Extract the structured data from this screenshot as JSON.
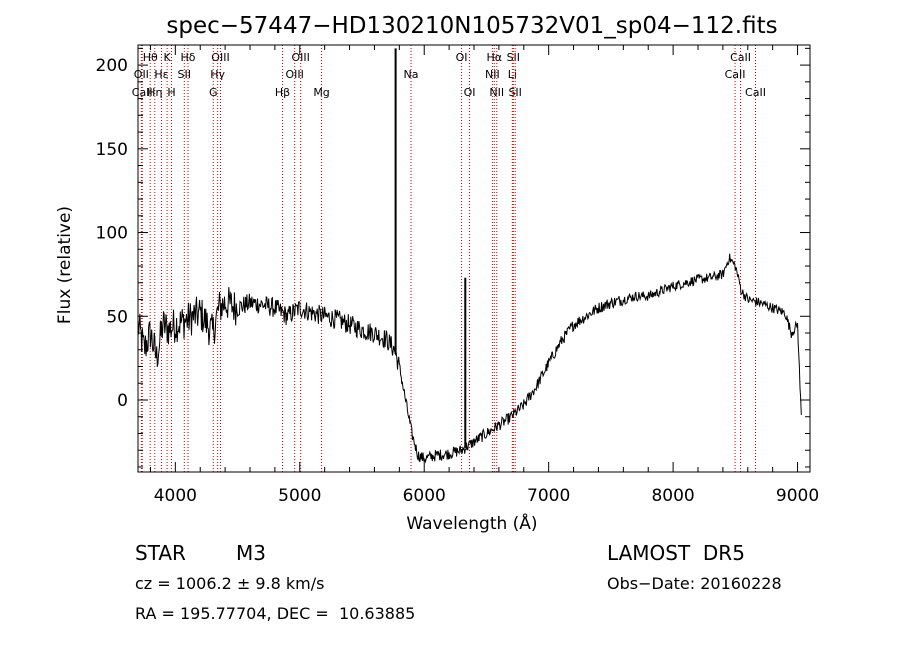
{
  "chart_data": {
    "type": "line",
    "title": "spec−57447−HD130210N105732V01_sp04−112.fits",
    "xlabel": "Wavelength (Å)",
    "ylabel": "Flux (relative)",
    "xlim": [
      3700,
      9100
    ],
    "ylim": [
      -43,
      212
    ],
    "x_ticks": [
      4000,
      5000,
      6000,
      7000,
      8000,
      9000
    ],
    "x_tick_labels": [
      "4000",
      "5000",
      "6000",
      "7000",
      "8000",
      "9000"
    ],
    "y_ticks": [
      0,
      50,
      100,
      150,
      200
    ],
    "y_tick_labels": [
      "0",
      "50",
      "100",
      "150",
      "200"
    ],
    "grid": false,
    "line_color": "#000000",
    "line_marker_color": "#cc0000",
    "spectrum_anchor_points": {
      "x": [
        3700,
        3750,
        3800,
        3850,
        3900,
        3950,
        4000,
        4100,
        4200,
        4300,
        4350,
        4400,
        4500,
        4600,
        4700,
        4800,
        4900,
        5000,
        5100,
        5200,
        5300,
        5400,
        5500,
        5600,
        5700,
        5760,
        5800,
        5850,
        5900,
        5950,
        6000,
        6100,
        6200,
        6300,
        6400,
        6500,
        6600,
        6700,
        6800,
        6900,
        7000,
        7100,
        7200,
        7300,
        7400,
        7500,
        7600,
        7700,
        7800,
        7900,
        8000,
        8100,
        8200,
        8300,
        8400,
        8450,
        8500,
        8550,
        8600,
        8700,
        8800,
        8900,
        8950,
        9000,
        9030
      ],
      "y": [
        45,
        30,
        40,
        25,
        45,
        42,
        45,
        48,
        52,
        40,
        55,
        58,
        55,
        58,
        57,
        55,
        50,
        55,
        52,
        50,
        48,
        45,
        42,
        40,
        36,
        30,
        20,
        0,
        -20,
        -33,
        -35,
        -33,
        -32,
        -30,
        -25,
        -20,
        -15,
        -10,
        -3,
        8,
        22,
        35,
        45,
        50,
        55,
        58,
        60,
        62,
        62,
        65,
        68,
        70,
        72,
        73,
        75,
        85,
        80,
        65,
        60,
        58,
        55,
        52,
        40,
        45,
        -10
      ]
    },
    "spikes": [
      {
        "x": 5770,
        "y": 210
      },
      {
        "x": 6330,
        "y": 73
      }
    ],
    "lines": [
      {
        "name": "Hθ",
        "x": 3798,
        "row": 0
      },
      {
        "name": "OII",
        "x": 3727,
        "row": 1
      },
      {
        "name": "CaII",
        "x": 3734,
        "row": 2
      },
      {
        "name": "K",
        "x": 3934,
        "row": 0
      },
      {
        "name": "Hε",
        "x": 3889,
        "row": 1
      },
      {
        "name": "Hη",
        "x": 3835,
        "row": 2
      },
      {
        "name": "Hδ",
        "x": 4102,
        "row": 0
      },
      {
        "name": "SII",
        "x": 4072,
        "row": 1
      },
      {
        "name": "H",
        "x": 3969,
        "row": 2
      },
      {
        "name": "OIII",
        "x": 4363,
        "row": 0
      },
      {
        "name": "Hγ",
        "x": 4340,
        "row": 1
      },
      {
        "name": "G",
        "x": 4305,
        "row": 2
      },
      {
        "name": "OIII",
        "x": 5007,
        "row": 0
      },
      {
        "name": "OIII",
        "x": 4959,
        "row": 1
      },
      {
        "name": "Hβ",
        "x": 4861,
        "row": 2
      },
      {
        "name": "Mg",
        "x": 5175,
        "row": 2
      },
      {
        "name": "Na",
        "x": 5894,
        "row": 1
      },
      {
        "name": "OI",
        "x": 6300,
        "row": 0
      },
      {
        "name": "OI",
        "x": 6364,
        "row": 2
      },
      {
        "name": "Hα",
        "x": 6563,
        "row": 0
      },
      {
        "name": "NII",
        "x": 6548,
        "row": 1
      },
      {
        "name": "NII",
        "x": 6583,
        "row": 2
      },
      {
        "name": "SII",
        "x": 6716,
        "row": 0
      },
      {
        "name": "Li",
        "x": 6708,
        "row": 1
      },
      {
        "name": "SII",
        "x": 6731,
        "row": 2
      },
      {
        "name": "CaII",
        "x": 8542,
        "row": 0
      },
      {
        "name": "CaII",
        "x": 8498,
        "row": 1
      },
      {
        "name": "CaII",
        "x": 8662,
        "row": 2
      }
    ]
  },
  "info": {
    "object_type": "STAR",
    "subclass": "M3",
    "survey": "LAMOST  DR5",
    "cz": "cz = 1006.2 ± 9.8 km/s",
    "obs_date": "Obs−Date: 20160228",
    "coords": "RA = 195.77704, DEC =  10.63885"
  }
}
